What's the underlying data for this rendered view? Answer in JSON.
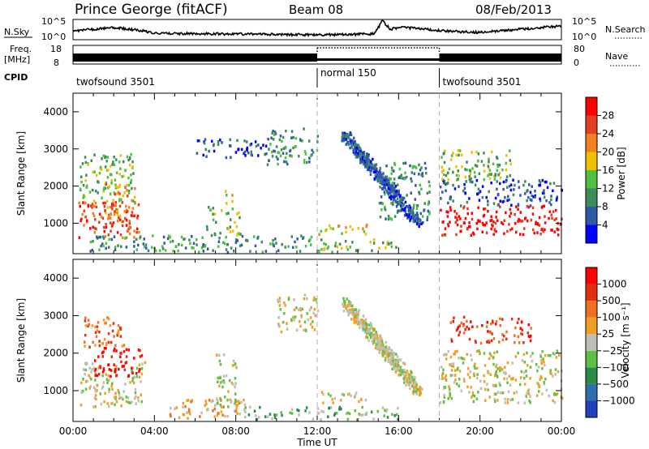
{
  "header": {
    "station": "Prince George (fitACF)",
    "beam": "Beam 08",
    "date": "08/Feb/2013"
  },
  "noise_panel": {
    "left_label": "N.Sky",
    "right_label": "N.Search",
    "left_ticks": [
      "10^5",
      "10^0"
    ],
    "right_ticks": [
      "10^5",
      "10^0"
    ]
  },
  "freq_panel": {
    "left_label_1": "Freq.",
    "left_label_2": "[MHz]",
    "right_label": "Nave",
    "left_ticks": [
      "18",
      "8"
    ],
    "right_ticks": [
      "80",
      "0"
    ]
  },
  "cpid": {
    "label": "CPID",
    "segments": [
      {
        "name": "twofsound 3501",
        "start_hour": 0
      },
      {
        "name": "normal 150",
        "start_hour": 12
      },
      {
        "name": "twofsound 3501",
        "start_hour": 18
      }
    ]
  },
  "x_axis": {
    "label": "Time UT",
    "ticks": [
      "00:00",
      "04:00",
      "08:00",
      "12:00",
      "16:00",
      "20:00",
      "00:00"
    ],
    "range_hours": [
      0,
      24
    ]
  },
  "power_panel": {
    "ylabel": "Slant Range [km]",
    "yticks": [
      "4000",
      "3000",
      "2000",
      "1000"
    ],
    "colorbar_label": "Power [dB]",
    "colorbar_ticks": [
      "28",
      "24",
      "20",
      "16",
      "12",
      "8",
      "4"
    ]
  },
  "velocity_panel": {
    "ylabel": "Slant Range [km]",
    "yticks": [
      "4000",
      "3000",
      "2000",
      "1000"
    ],
    "colorbar_label": "Velocity [m s⁻¹]",
    "colorbar_ticks": [
      "1000",
      "500",
      "100",
      "25",
      "−25",
      "−100",
      "−500",
      "−1000"
    ]
  },
  "colors": {
    "power_scale": [
      "#0000ff",
      "#2f5aa8",
      "#3c8c5a",
      "#4fc040",
      "#f0c000",
      "#f08020",
      "#e04020",
      "#ff0000"
    ],
    "velocity_scale": [
      "#2040c0",
      "#2f6fb0",
      "#2a8a4a",
      "#60c040",
      "#bebeb4",
      "#f0a020",
      "#f07020",
      "#e03010",
      "#ff0000"
    ]
  },
  "chart_data": {
    "type": "heatmap",
    "x_unit": "hours UT",
    "y_unit": "slant range km",
    "xlim": [
      0,
      24
    ],
    "ylim": [
      180,
      4500
    ],
    "power_regions": [
      {
        "t0": 0.2,
        "t1": 3.2,
        "r0": 600,
        "r1": 1600,
        "level": 6
      },
      {
        "t0": 0.3,
        "t1": 3.0,
        "r0": 1600,
        "r1": 2900,
        "level": 3
      },
      {
        "t0": 1.5,
        "t1": 3.0,
        "r0": 1000,
        "r1": 2100,
        "level": 5
      },
      {
        "t0": 0.8,
        "t1": 3.5,
        "r0": 250,
        "r1": 700,
        "level": 2
      },
      {
        "t0": 3.5,
        "t1": 11.8,
        "r0": 250,
        "r1": 700,
        "level": 2
      },
      {
        "t0": 6.5,
        "t1": 8.2,
        "r0": 700,
        "r1": 1500,
        "level": 3
      },
      {
        "t0": 7.4,
        "t1": 7.8,
        "r0": 1400,
        "r1": 1900,
        "level": 4
      },
      {
        "t0": 6.0,
        "t1": 9.5,
        "r0": 2800,
        "r1": 3300,
        "level": 1
      },
      {
        "t0": 9.5,
        "t1": 12.0,
        "r0": 2600,
        "r1": 3600,
        "level": 2
      },
      {
        "t0": 12.0,
        "t1": 14.5,
        "r0": 700,
        "r1": 1000,
        "level": 4
      },
      {
        "t0": 12.0,
        "t1": 16.0,
        "r0": 250,
        "r1": 600,
        "level": 3
      },
      {
        "t0": 18.0,
        "t1": 24.0,
        "r0": 700,
        "r1": 1500,
        "level": 7
      },
      {
        "t0": 18.0,
        "t1": 24.0,
        "r0": 1500,
        "r1": 2200,
        "level": 1
      },
      {
        "t0": 18.0,
        "t1": 21.5,
        "r0": 2200,
        "r1": 3000,
        "level": 3
      },
      {
        "t0": 15.0,
        "t1": 17.5,
        "r0": 1100,
        "r1": 2700,
        "level": 2
      }
    ],
    "power_arc": {
      "t_start": 13.3,
      "r_start": 3400,
      "t_end": 17.0,
      "r_end": 1000,
      "level": 1
    },
    "velocity_regions": [
      {
        "t0": 0.3,
        "t1": 3.5,
        "r0": 600,
        "r1": 1800,
        "level": 4
      },
      {
        "t0": 1.0,
        "t1": 3.5,
        "r0": 1400,
        "r1": 2200,
        "level": 8
      },
      {
        "t0": 0.5,
        "t1": 2.5,
        "r0": 2200,
        "r1": 3000,
        "level": 6
      },
      {
        "t0": 4.5,
        "t1": 8.5,
        "r0": 300,
        "r1": 800,
        "level": 5
      },
      {
        "t0": 7.0,
        "t1": 8.0,
        "r0": 600,
        "r1": 2000,
        "level": 4
      },
      {
        "t0": 8.0,
        "t1": 16.0,
        "r0": 250,
        "r1": 600,
        "level": 3
      },
      {
        "t0": 10.0,
        "t1": 12.0,
        "r0": 2600,
        "r1": 3600,
        "level": 4
      },
      {
        "t0": 12.0,
        "t1": 14.5,
        "r0": 700,
        "r1": 1000,
        "level": 4
      },
      {
        "t0": 18.0,
        "t1": 24.0,
        "r0": 700,
        "r1": 1500,
        "level": 4
      },
      {
        "t0": 18.0,
        "t1": 24.0,
        "r0": 1500,
        "r1": 2100,
        "level": 4
      },
      {
        "t0": 18.5,
        "t1": 22.5,
        "r0": 2300,
        "r1": 3000,
        "level": 7
      }
    ],
    "velocity_arc": {
      "t_start": 13.3,
      "r_start": 3400,
      "t_end": 17.0,
      "r_end": 1000,
      "level": 4
    },
    "cpid_change_hours": [
      12,
      18
    ]
  }
}
